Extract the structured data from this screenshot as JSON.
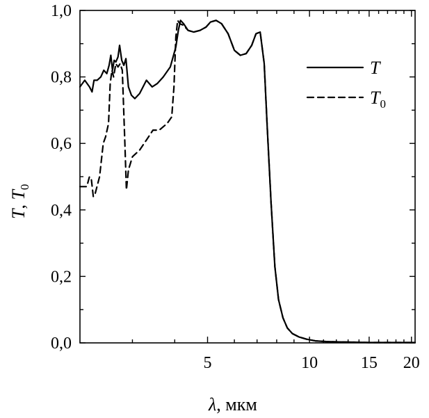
{
  "chart_data": {
    "type": "line",
    "xlabel": {
      "symbol": "λ",
      "unit": ", мкм"
    },
    "ylabel": {
      "symbol1": "T",
      "sep": ", ",
      "symbol2": "T",
      "sub2": "0"
    },
    "xscale": "log",
    "xlim": [
      2.1,
      20.5
    ],
    "ylim": [
      0.0,
      1.0
    ],
    "x_ticks": [
      5,
      10,
      15,
      20
    ],
    "x_tick_labels": [
      "5",
      "10",
      "15",
      "20"
    ],
    "y_ticks": [
      0.0,
      0.2,
      0.4,
      0.6,
      0.8,
      1.0
    ],
    "y_tick_labels": [
      "0,0",
      "0,2",
      "0,4",
      "0,6",
      "0,8",
      "1,0"
    ],
    "grid": false,
    "legend_position": "top-right",
    "series": [
      {
        "name": "T",
        "sub": "",
        "style": "solid",
        "x": [
          2.1,
          2.17,
          2.24,
          2.28,
          2.31,
          2.36,
          2.42,
          2.47,
          2.52,
          2.56,
          2.59,
          2.62,
          2.65,
          2.68,
          2.72,
          2.75,
          2.79,
          2.83,
          2.87,
          2.92,
          2.98,
          3.05,
          3.15,
          3.3,
          3.43,
          3.55,
          3.7,
          3.88,
          4.03,
          4.1,
          4.16,
          4.25,
          4.38,
          4.55,
          4.75,
          4.95,
          5.1,
          5.3,
          5.5,
          5.75,
          6.0,
          6.25,
          6.5,
          6.75,
          6.95,
          7.15,
          7.35,
          7.5,
          7.7,
          7.9,
          8.1,
          8.35,
          8.6,
          8.9,
          9.3,
          9.8,
          10.4,
          11.2,
          12.2,
          13.5,
          15.0,
          17.0,
          20.5
        ],
        "y": [
          0.77,
          0.79,
          0.77,
          0.755,
          0.79,
          0.79,
          0.8,
          0.82,
          0.81,
          0.835,
          0.865,
          0.82,
          0.85,
          0.845,
          0.86,
          0.895,
          0.85,
          0.835,
          0.855,
          0.77,
          0.745,
          0.735,
          0.75,
          0.79,
          0.77,
          0.78,
          0.8,
          0.83,
          0.89,
          0.94,
          0.97,
          0.96,
          0.94,
          0.935,
          0.94,
          0.95,
          0.965,
          0.97,
          0.96,
          0.93,
          0.88,
          0.865,
          0.87,
          0.895,
          0.93,
          0.935,
          0.84,
          0.65,
          0.42,
          0.23,
          0.13,
          0.075,
          0.045,
          0.028,
          0.018,
          0.011,
          0.006,
          0.004,
          0.003,
          0.002,
          0.001,
          0.001,
          0.001
        ]
      },
      {
        "name": "T",
        "sub": "0",
        "style": "dashed",
        "x": [
          2.1,
          2.2,
          2.24,
          2.27,
          2.3,
          2.33,
          2.4,
          2.46,
          2.5,
          2.55,
          2.58,
          2.61,
          2.64,
          2.68,
          2.72,
          2.76,
          2.8,
          2.85,
          2.88,
          2.92,
          3.0,
          3.15,
          3.3,
          3.45,
          3.6,
          3.8,
          3.92,
          3.98,
          4.03,
          4.08,
          4.14,
          4.25,
          4.38,
          4.55,
          4.75,
          4.95,
          5.1,
          5.3,
          5.5,
          5.75,
          6.0,
          6.25,
          6.5,
          6.75,
          6.95,
          7.15,
          7.35,
          7.5,
          7.7,
          7.9,
          8.1,
          8.35,
          8.6,
          8.9,
          9.3,
          9.8,
          10.4,
          11.2,
          12.2,
          13.5,
          15.0,
          17.0,
          20.5
        ],
        "y": [
          0.47,
          0.47,
          0.5,
          0.49,
          0.44,
          0.45,
          0.5,
          0.6,
          0.62,
          0.66,
          0.78,
          0.82,
          0.8,
          0.84,
          0.83,
          0.84,
          0.82,
          0.6,
          0.46,
          0.52,
          0.56,
          0.58,
          0.61,
          0.64,
          0.64,
          0.66,
          0.68,
          0.77,
          0.92,
          0.97,
          0.96,
          0.955,
          0.94,
          0.935,
          0.94,
          0.95,
          0.965,
          0.97,
          0.96,
          0.93,
          0.88,
          0.865,
          0.87,
          0.895,
          0.93,
          0.935,
          0.84,
          0.65,
          0.42,
          0.23,
          0.13,
          0.075,
          0.045,
          0.028,
          0.018,
          0.011,
          0.006,
          0.004,
          0.003,
          0.002,
          0.001,
          0.001,
          0.001
        ]
      }
    ]
  }
}
